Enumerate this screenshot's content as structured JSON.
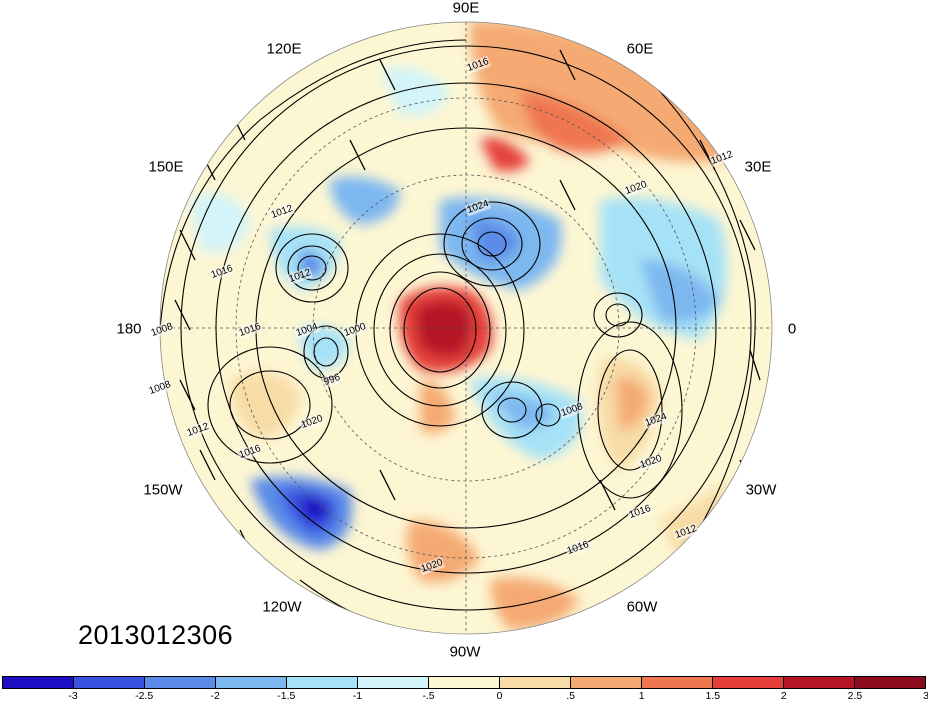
{
  "map": {
    "projection": "north-polar-stereographic",
    "date_label": "2013012306",
    "longitude_labels": [
      "90E",
      "60E",
      "30E",
      "0",
      "30W",
      "60W",
      "90W",
      "120W",
      "150W",
      "180",
      "150E",
      "120E"
    ],
    "contour_labels": [
      "1016",
      "1012",
      "1020",
      "1024",
      "1012",
      "1016",
      "1008",
      "1008",
      "1012",
      "1016",
      "1004",
      "1000",
      "996",
      "1020",
      "1016",
      "1024",
      "1020",
      "1016",
      "1012",
      "1016",
      "1020",
      "1008",
      "1012"
    ],
    "colorbar": {
      "colors": [
        "#1d0fc4",
        "#3a52e0",
        "#5a8be8",
        "#7db7f0",
        "#a6e2f7",
        "#d2f4fa",
        "#fdf6d3",
        "#f8dca6",
        "#f5aa73",
        "#ef7650",
        "#e53f3a",
        "#b41526",
        "#8c0a1e"
      ],
      "tick_labels": [
        "-3",
        "-2.5",
        "-2",
        "-1.5",
        "-1",
        "-.5",
        "0",
        ".5",
        "1",
        "1.5",
        "2",
        "2.5",
        "3"
      ]
    }
  }
}
